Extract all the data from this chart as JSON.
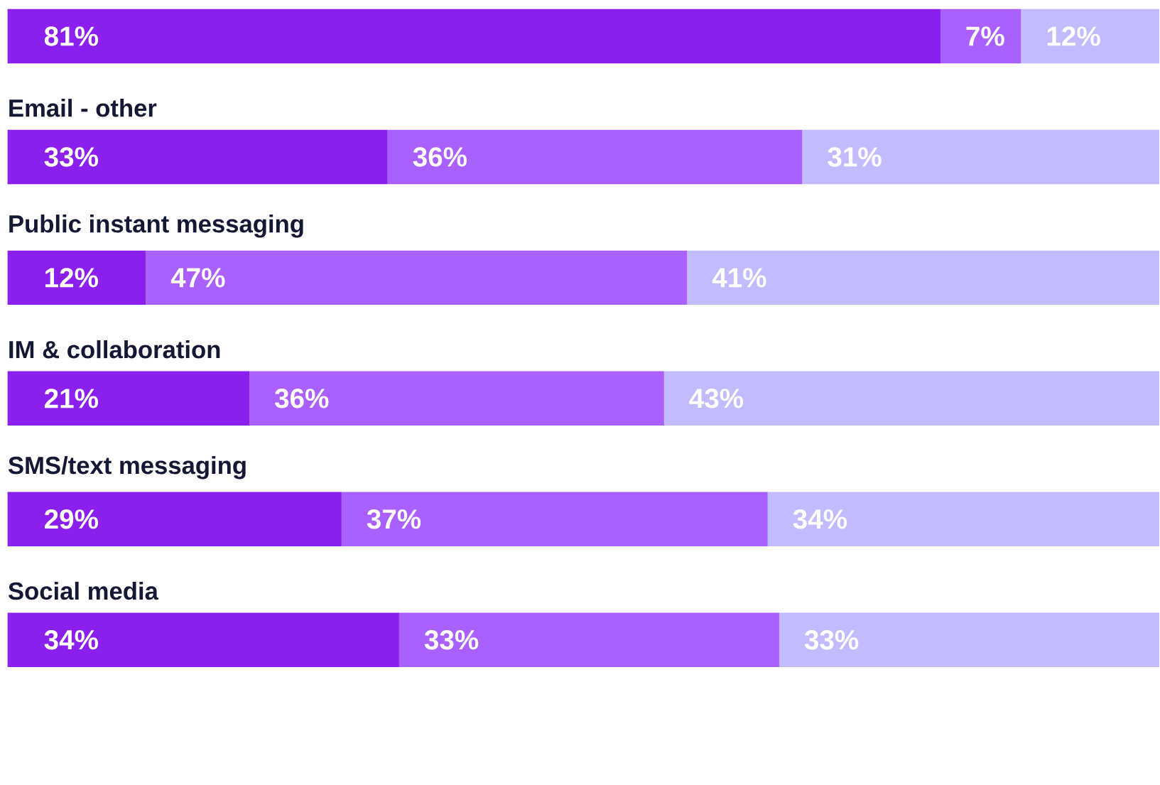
{
  "chart_data": {
    "type": "bar",
    "orientation": "horizontal",
    "stacked": true,
    "categories": [
      null,
      "Email - other",
      "Public instant messaging",
      "IM & collaboration",
      "SMS/text messaging",
      "Social media"
    ],
    "xlim": [
      0,
      100
    ],
    "tick_labels": false,
    "series": [
      {
        "color": "#8a1fee",
        "values": [
          81,
          33,
          12,
          21,
          29,
          34
        ],
        "value_labels": [
          "81%",
          "33%",
          "12%",
          "21%",
          "29%",
          "34%"
        ]
      },
      {
        "color": "#aa60ff",
        "values": [
          7,
          36,
          47,
          36,
          37,
          33
        ],
        "value_labels": [
          "7%",
          "36%",
          "47%",
          "36%",
          "37%",
          "33%"
        ]
      },
      {
        "color": "#c2bcff",
        "values": [
          12,
          31,
          41,
          43,
          34,
          33
        ],
        "value_labels": [
          "12%",
          "31%",
          "41%",
          "43%",
          "34%",
          "33%"
        ]
      }
    ]
  }
}
